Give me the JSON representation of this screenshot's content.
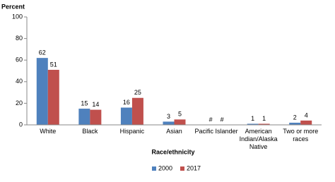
{
  "chart_data": {
    "type": "bar",
    "y_label": "Percent",
    "x_label": "Race/ethnicity",
    "categories": [
      "White",
      "Black",
      "Hispanic",
      "Asian",
      "Pacific Islander",
      "American Indian/Alaska Native",
      "Two or more races"
    ],
    "series": [
      {
        "name": "2000",
        "color": "#4f81bd",
        "values": [
          62,
          15,
          16,
          3,
          null,
          1,
          2
        ],
        "value_labels": [
          "62",
          "15",
          "16",
          "3",
          "#",
          "1",
          "2"
        ]
      },
      {
        "name": "2017",
        "color": "#c0504d",
        "values": [
          51,
          14,
          25,
          5,
          null,
          1,
          4
        ],
        "value_labels": [
          "51",
          "14",
          "25",
          "5",
          "#",
          "1",
          "4"
        ]
      }
    ],
    "ylim": [
      0,
      100
    ],
    "yticks": [
      0,
      20,
      40,
      60,
      80,
      100
    ],
    "grid": false,
    "legend": "bottom"
  }
}
